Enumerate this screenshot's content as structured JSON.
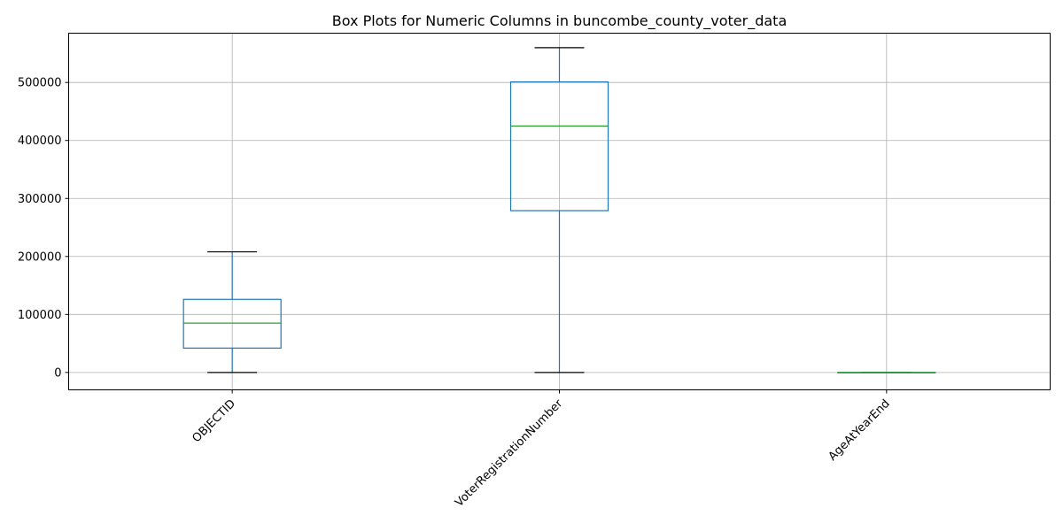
{
  "chart_data": {
    "type": "box",
    "title": "Box Plots for Numeric Columns in buncombe_county_voter_data",
    "xlabel": "",
    "ylabel": "",
    "ylim": [
      -30000,
      585000
    ],
    "yticks": [
      0,
      100000,
      200000,
      300000,
      400000,
      500000
    ],
    "ytick_labels": [
      "0",
      "100000",
      "200000",
      "300000",
      "400000",
      "500000"
    ],
    "grid": true,
    "categories": [
      "OBJECTID",
      "VoterRegistrationNumber",
      "AgeAtYearEnd"
    ],
    "boxes": [
      {
        "label": "OBJECTID",
        "whisker_low": 1,
        "q1": 42000,
        "median": 85000,
        "q3": 126000,
        "whisker_high": 208000
      },
      {
        "label": "VoterRegistrationNumber",
        "whisker_low": 1,
        "q1": 279000,
        "median": 425000,
        "q3": 501000,
        "whisker_high": 560000
      },
      {
        "label": "AgeAtYearEnd",
        "whisker_low": 18,
        "q1": 33,
        "median": 50,
        "q3": 64,
        "whisker_high": 110
      }
    ],
    "colors": {
      "box": "#1f77b4",
      "median": "#2ca02c",
      "cap": "#000000",
      "grid": "#b0b0b0",
      "axes": "#000000"
    }
  }
}
